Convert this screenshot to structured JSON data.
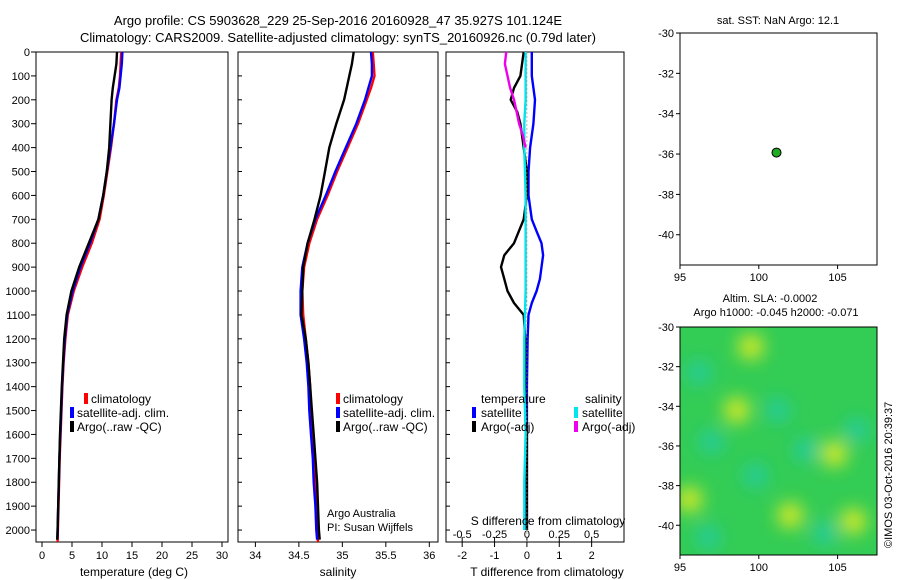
{
  "figure": {
    "title_line1": "Argo profile: CS 5903628_229 25-Sep-2016 20160928_47 35.927S 101.124E",
    "title_line2": "Climatology: CARS2009. Satellite-adjusted climatology: synTS_20160926.nc (0.79d later)",
    "credit": "©IMOS 03-Oct-2016 20:39:37",
    "agency": "Argo Australia",
    "pi": "PI: Susan Wijffels"
  },
  "colors": {
    "climatology": "#ff0000",
    "satellite": "#0000ff",
    "argo": "#000000",
    "satellite_s": "#00e5ee",
    "argo_s": "#ee00ee",
    "marker": "#22aa22"
  },
  "chart_data": [
    {
      "type": "line",
      "id": "temperature",
      "xlabel": "temperature (deg C)",
      "xlim": [
        -1,
        31
      ],
      "xticks": [
        0,
        5,
        10,
        15,
        20,
        25,
        30
      ],
      "ylim": [
        0,
        2050
      ],
      "yticks": [
        0,
        100,
        200,
        300,
        400,
        500,
        600,
        700,
        800,
        900,
        1000,
        1100,
        1200,
        1300,
        1400,
        1500,
        1600,
        1700,
        1800,
        1900,
        2000
      ],
      "legend": [
        "climatology",
        "satellite-adj. clim.",
        "Argo(..raw -QC)"
      ],
      "series": [
        {
          "name": "climatology",
          "color": "#ff0000",
          "points": [
            [
              13.2,
              0
            ],
            [
              13.1,
              50
            ],
            [
              13.0,
              100
            ],
            [
              12.8,
              150
            ],
            [
              12.4,
              200
            ],
            [
              12.0,
              300
            ],
            [
              11.5,
              400
            ],
            [
              10.9,
              500
            ],
            [
              10.3,
              600
            ],
            [
              9.6,
              700
            ],
            [
              8.3,
              800
            ],
            [
              6.7,
              900
            ],
            [
              5.3,
              1000
            ],
            [
              4.3,
              1100
            ],
            [
              3.9,
              1200
            ],
            [
              3.6,
              1300
            ],
            [
              3.4,
              1400
            ],
            [
              3.25,
              1500
            ],
            [
              3.1,
              1600
            ],
            [
              2.95,
              1700
            ],
            [
              2.85,
              1800
            ],
            [
              2.75,
              1900
            ],
            [
              2.65,
              2000
            ],
            [
              2.6,
              2050
            ]
          ]
        },
        {
          "name": "satellite-adj. clim.",
          "color": "#0000ff",
          "points": [
            [
              13.4,
              0
            ],
            [
              13.3,
              50
            ],
            [
              13.1,
              100
            ],
            [
              12.9,
              150
            ],
            [
              12.5,
              200
            ],
            [
              12.0,
              300
            ],
            [
              11.4,
              400
            ],
            [
              10.8,
              500
            ],
            [
              10.2,
              600
            ],
            [
              9.4,
              700
            ],
            [
              8.0,
              800
            ],
            [
              6.4,
              900
            ],
            [
              5.1,
              1000
            ],
            [
              4.2,
              1100
            ],
            [
              3.8,
              1200
            ],
            [
              3.55,
              1300
            ],
            [
              3.35,
              1400
            ],
            [
              3.2,
              1500
            ],
            [
              3.05,
              1600
            ],
            [
              2.9,
              1700
            ],
            [
              2.8,
              1800
            ],
            [
              2.7,
              1900
            ],
            [
              2.6,
              2000
            ],
            [
              2.55,
              2040
            ]
          ]
        },
        {
          "name": "Argo(..raw -QC)",
          "color": "#000000",
          "points": [
            [
              12.5,
              0
            ],
            [
              12.4,
              50
            ],
            [
              12.1,
              100
            ],
            [
              11.8,
              150
            ],
            [
              11.6,
              200
            ],
            [
              11.5,
              250
            ],
            [
              11.4,
              300
            ],
            [
              11.2,
              400
            ],
            [
              10.8,
              500
            ],
            [
              10.2,
              600
            ],
            [
              9.4,
              700
            ],
            [
              7.8,
              800
            ],
            [
              6.2,
              900
            ],
            [
              4.9,
              1000
            ],
            [
              4.1,
              1100
            ],
            [
              3.7,
              1200
            ],
            [
              3.5,
              1300
            ],
            [
              3.3,
              1400
            ],
            [
              3.15,
              1500
            ],
            [
              3.0,
              1600
            ],
            [
              2.9,
              1700
            ],
            [
              2.8,
              1800
            ],
            [
              2.7,
              1900
            ],
            [
              2.6,
              2000
            ],
            [
              2.55,
              2040
            ]
          ]
        }
      ]
    },
    {
      "type": "line",
      "id": "salinity",
      "xlabel": "salinity",
      "xlim": [
        33.8,
        36.1
      ],
      "xticks": [
        34,
        34.5,
        35,
        35.5,
        36
      ],
      "ylim": [
        0,
        2050
      ],
      "legend": [
        "climatology",
        "satellite-adj. clim.",
        "Argo(..raw -QC)"
      ],
      "series": [
        {
          "name": "climatology",
          "color": "#ff0000",
          "points": [
            [
              35.35,
              0
            ],
            [
              35.36,
              50
            ],
            [
              35.37,
              100
            ],
            [
              35.33,
              150
            ],
            [
              35.28,
              200
            ],
            [
              35.18,
              300
            ],
            [
              35.06,
              400
            ],
            [
              34.94,
              500
            ],
            [
              34.83,
              600
            ],
            [
              34.71,
              700
            ],
            [
              34.62,
              800
            ],
            [
              34.56,
              900
            ],
            [
              34.54,
              1000
            ],
            [
              34.55,
              1100
            ],
            [
              34.58,
              1200
            ],
            [
              34.61,
              1300
            ],
            [
              34.63,
              1400
            ],
            [
              34.64,
              1500
            ],
            [
              34.66,
              1600
            ],
            [
              34.68,
              1700
            ],
            [
              34.69,
              1800
            ],
            [
              34.7,
              1900
            ],
            [
              34.71,
              2000
            ],
            [
              34.72,
              2050
            ]
          ]
        },
        {
          "name": "satellite-adj. clim.",
          "color": "#0000ff",
          "points": [
            [
              35.33,
              0
            ],
            [
              35.34,
              50
            ],
            [
              35.34,
              100
            ],
            [
              35.3,
              150
            ],
            [
              35.26,
              200
            ],
            [
              35.16,
              300
            ],
            [
              35.04,
              400
            ],
            [
              34.92,
              500
            ],
            [
              34.81,
              600
            ],
            [
              34.69,
              700
            ],
            [
              34.6,
              800
            ],
            [
              34.54,
              900
            ],
            [
              34.52,
              1000
            ],
            [
              34.52,
              1100
            ],
            [
              34.56,
              1200
            ],
            [
              34.59,
              1300
            ],
            [
              34.61,
              1400
            ],
            [
              34.62,
              1500
            ],
            [
              34.64,
              1600
            ],
            [
              34.66,
              1700
            ],
            [
              34.67,
              1800
            ],
            [
              34.69,
              1900
            ],
            [
              34.7,
              2000
            ],
            [
              34.71,
              2040
            ]
          ]
        },
        {
          "name": "Argo(..raw -QC)",
          "color": "#000000",
          "points": [
            [
              35.13,
              0
            ],
            [
              35.11,
              50
            ],
            [
              35.08,
              100
            ],
            [
              35.05,
              150
            ],
            [
              35.02,
              200
            ],
            [
              34.93,
              300
            ],
            [
              34.85,
              400
            ],
            [
              34.8,
              500
            ],
            [
              34.75,
              600
            ],
            [
              34.68,
              700
            ],
            [
              34.6,
              800
            ],
            [
              34.55,
              900
            ],
            [
              34.54,
              1000
            ],
            [
              34.53,
              1100
            ],
            [
              34.58,
              1200
            ],
            [
              34.61,
              1300
            ],
            [
              34.63,
              1400
            ],
            [
              34.65,
              1500
            ],
            [
              34.67,
              1600
            ],
            [
              34.69,
              1700
            ],
            [
              34.71,
              1800
            ],
            [
              34.72,
              1900
            ],
            [
              34.73,
              2000
            ],
            [
              34.74,
              2040
            ]
          ]
        }
      ]
    },
    {
      "type": "line",
      "id": "difference",
      "xlabel": "T difference from climatology",
      "xlabel_top": "S difference from climatology",
      "xlim": [
        -2.5,
        3
      ],
      "xticks": [
        -2,
        -1,
        0,
        1,
        2
      ],
      "xticks_top": [
        "-0.5",
        "-0.25",
        "0",
        "0.25",
        "0.5"
      ],
      "legend_title_t": "temperature",
      "legend_title_s": "salinity",
      "legend": [
        "satellite",
        "Argo(-adj)",
        "satellite",
        "Argo(-adj)"
      ],
      "series": [
        {
          "name": "T satellite",
          "color": "#0000ff",
          "points": [
            [
              0.15,
              0
            ],
            [
              0.15,
              100
            ],
            [
              0.25,
              200
            ],
            [
              0.2,
              300
            ],
            [
              0.1,
              400
            ],
            [
              0.05,
              500
            ],
            [
              0.05,
              600
            ],
            [
              0.15,
              700
            ],
            [
              0.3,
              750
            ],
            [
              0.45,
              800
            ],
            [
              0.5,
              850
            ],
            [
              0.45,
              900
            ],
            [
              0.4,
              950
            ],
            [
              0.3,
              1000
            ],
            [
              0.15,
              1050
            ],
            [
              0.05,
              1100
            ],
            [
              0.02,
              1200
            ],
            [
              0.0,
              1400
            ],
            [
              0.0,
              1600
            ],
            [
              0.0,
              1800
            ],
            [
              0.0,
              2000
            ]
          ]
        },
        {
          "name": "T Argo(-adj)",
          "color": "#000000",
          "points": [
            [
              -0.1,
              0
            ],
            [
              -0.2,
              100
            ],
            [
              -0.4,
              150
            ],
            [
              -0.5,
              200
            ],
            [
              -0.3,
              250
            ],
            [
              -0.2,
              300
            ],
            [
              -0.1,
              400
            ],
            [
              0.0,
              500
            ],
            [
              0.0,
              600
            ],
            [
              -0.1,
              700
            ],
            [
              -0.4,
              800
            ],
            [
              -0.7,
              850
            ],
            [
              -0.8,
              900
            ],
            [
              -0.7,
              950
            ],
            [
              -0.6,
              1000
            ],
            [
              -0.4,
              1050
            ],
            [
              -0.1,
              1100
            ],
            [
              -0.05,
              1200
            ],
            [
              -0.05,
              1400
            ],
            [
              0.0,
              1600
            ],
            [
              0.0,
              1800
            ],
            [
              0.0,
              2000
            ]
          ]
        },
        {
          "name": "S satellite",
          "color": "#00e5ee",
          "points": [
            [
              -0.01,
              0
            ],
            [
              -0.01,
              100
            ],
            [
              -0.01,
              200
            ],
            [
              -0.02,
              300
            ],
            [
              -0.02,
              400
            ],
            [
              -0.01,
              600
            ],
            [
              -0.01,
              800
            ],
            [
              -0.01,
              1000
            ],
            [
              -0.02,
              1200
            ],
            [
              -0.02,
              1400
            ],
            [
              -0.01,
              1600
            ],
            [
              -0.02,
              1800
            ],
            [
              -0.02,
              2000
            ]
          ]
        },
        {
          "name": "S Argo(-adj)",
          "color": "#ee00ee",
          "points": [
            [
              -0.16,
              0
            ],
            [
              -0.17,
              50
            ],
            [
              -0.15,
              100
            ],
            [
              -0.13,
              150
            ],
            [
              -0.1,
              200
            ],
            [
              -0.08,
              250
            ],
            [
              -0.06,
              300
            ],
            [
              -0.03,
              350
            ],
            [
              -0.01,
              400
            ]
          ]
        }
      ]
    },
    {
      "type": "scatter",
      "id": "sst-map",
      "title": "sat. SST: NaN Argo: 12.1",
      "xlim": [
        95,
        107.5
      ],
      "ylim": [
        -41.5,
        -30
      ],
      "xticks": [
        95,
        100,
        105
      ],
      "yticks": [
        -30,
        -32,
        -34,
        -36,
        -38,
        -40
      ],
      "points": [
        [
          101.124,
          -35.927
        ]
      ]
    },
    {
      "type": "heatmap",
      "id": "sla-map",
      "title_line1": "Altim. SLA: -0.0002",
      "title_line2": "Argo h1000: -0.045 h2000: -0.071",
      "xlim": [
        95,
        107.5
      ],
      "ylim": [
        -41.5,
        -30
      ],
      "xticks": [
        95,
        100,
        105
      ],
      "yticks": [
        -30,
        -32,
        -34,
        -36,
        -38,
        -40
      ],
      "cyan_spots": [
        [
          96.2,
          -32.3
        ],
        [
          101.2,
          -34.2
        ],
        [
          97.0,
          -35.8
        ],
        [
          103.0,
          -36.2
        ],
        [
          106.2,
          -35.2
        ],
        [
          99.8,
          -37.5
        ],
        [
          96.8,
          -40.6
        ],
        [
          104.2,
          -40.4
        ]
      ],
      "yellow_spots": [
        [
          99.5,
          -31.0
        ],
        [
          95.6,
          -38.7
        ],
        [
          98.6,
          -34.2
        ],
        [
          104.8,
          -36.4
        ],
        [
          106.0,
          -39.8
        ],
        [
          102.0,
          -39.5
        ]
      ]
    }
  ]
}
